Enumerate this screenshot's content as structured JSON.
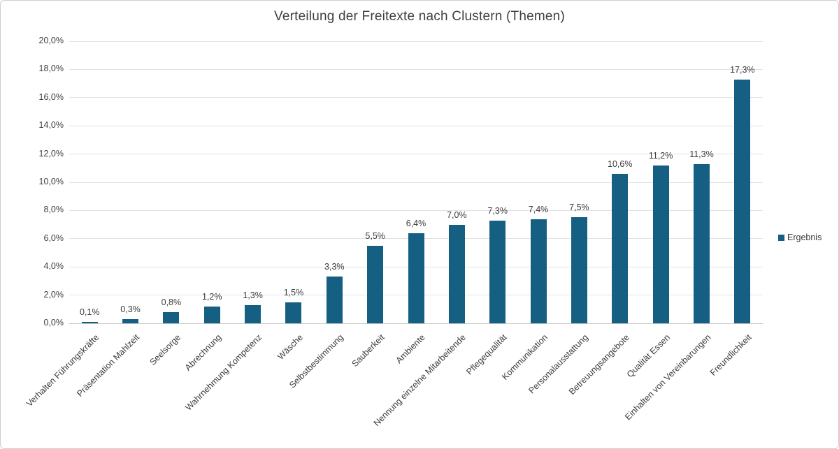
{
  "chart_data": {
    "type": "bar",
    "title": "Verteilung der Freitexte nach Clustern (Themen)",
    "categories": [
      "Verhalten Führungskräfte",
      "Präsentation Mahlzeit",
      "Seelsorge",
      "Abrechnung",
      "Wahrnehmung Kompetenz",
      "Wäsche",
      "Selbstbestimmung",
      "Sauberkeit",
      "Ambiente",
      "Nennung einzelne Mitarbeitende",
      "Pflegequalität",
      "Kommunikation",
      "Personalausstattung",
      "Betreuungsangebote",
      "Qualität Essen",
      "Einhalten von Vereinbarungen",
      "Freundlichkeit"
    ],
    "series": [
      {
        "name": "Ergebnis",
        "values": [
          0.1,
          0.3,
          0.8,
          1.2,
          1.3,
          1.5,
          3.3,
          5.5,
          6.4,
          7.0,
          7.3,
          7.4,
          7.5,
          10.6,
          11.2,
          11.3,
          17.3
        ],
        "value_labels": [
          "0,1%",
          "0,3%",
          "0,8%",
          "1,2%",
          "1,3%",
          "1,5%",
          "3,3%",
          "5,5%",
          "6,4%",
          "7,0%",
          "7,3%",
          "7,4%",
          "7,5%",
          "10,6%",
          "11,2%",
          "11,3%",
          "17,3%"
        ]
      }
    ],
    "y_ticks": [
      "0,0%",
      "2,0%",
      "4,0%",
      "6,0%",
      "8,0%",
      "10,0%",
      "12,0%",
      "14,0%",
      "16,0%",
      "18,0%",
      "20,0%"
    ],
    "ylim": [
      0,
      20
    ],
    "y_step": 2,
    "xlabel": "",
    "ylabel": "",
    "grid": "horizontal",
    "legend_position": "right",
    "colors": {
      "bar": "#156082",
      "text": "#3b3b3b",
      "axis_text": "#404040",
      "gridline": "#e2e2e2",
      "axis_line": "#c6c6c6",
      "frame_border": "#d0cece",
      "background": "#ffffff"
    }
  }
}
